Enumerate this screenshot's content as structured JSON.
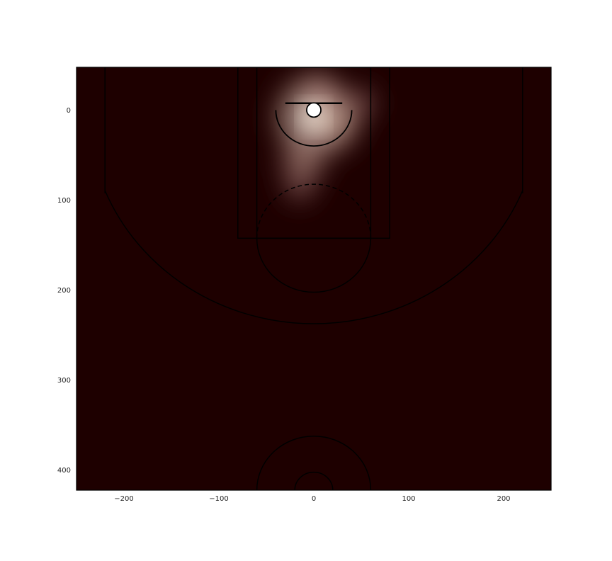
{
  "chart_data": {
    "type": "heatmap",
    "title": "",
    "xlabel": "",
    "ylabel": "",
    "xlim": [
      -250,
      250
    ],
    "ylim": [
      422.5,
      -47.5
    ],
    "y_inverted": true,
    "grid": false,
    "x_ticks": [
      -200,
      -100,
      0,
      100,
      200
    ],
    "y_ticks": [
      0,
      100,
      200,
      300,
      400
    ],
    "x_tick_labels": [
      "−200",
      "−100",
      "0",
      "100",
      "200"
    ],
    "y_tick_labels": [
      "0",
      "100",
      "200",
      "300",
      "400"
    ],
    "colormap": "pink",
    "colors": {
      "background": "#1e0000",
      "court_lines": "#000000",
      "hoop_fill": "#ffffff",
      "frame": "#000000"
    },
    "density_hotspots": [
      {
        "x": 0,
        "y": 8,
        "relative_density": 1.0
      },
      {
        "x": 22,
        "y": 10,
        "relative_density": 0.55
      },
      {
        "x": -12,
        "y": 58,
        "relative_density": 0.42
      },
      {
        "x": 5,
        "y": -18,
        "relative_density": 0.3
      },
      {
        "x": 50,
        "y": -8,
        "relative_density": 0.15
      },
      {
        "x": -15,
        "y": 85,
        "relative_density": 0.14
      }
    ]
  }
}
